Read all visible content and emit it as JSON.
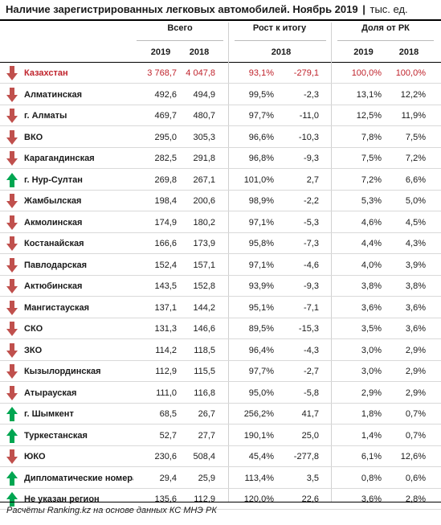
{
  "title": {
    "main": "Наличие зарегистрированных легковых автомобилей. Ноябрь 2019",
    "sep": "|",
    "unit": "тыс. ед."
  },
  "header": {
    "group_total": "Всего",
    "group_growth": "Рост к итогу",
    "group_share": "Доля от РК",
    "col_total_2019": "2019",
    "col_total_2018": "2018",
    "col_growth_2018": "2018",
    "col_share_2019": "2019",
    "col_share_2018": "2018"
  },
  "colors": {
    "down": "#c0504d",
    "up": "#00a651",
    "total_text": "#c0232c"
  },
  "rows": [
    {
      "name": "Казахстан",
      "trend": "down",
      "t2019": "3 768,7",
      "t2018": "4 047,8",
      "g_pct": "93,1%",
      "g_abs": "-279,1",
      "s2019": "100,0%",
      "s2018": "100,0%",
      "total": true
    },
    {
      "name": "Алматинская",
      "trend": "down",
      "t2019": "492,6",
      "t2018": "494,9",
      "g_pct": "99,5%",
      "g_abs": "-2,3",
      "s2019": "13,1%",
      "s2018": "12,2%"
    },
    {
      "name": "г. Алматы",
      "trend": "down",
      "t2019": "469,7",
      "t2018": "480,7",
      "g_pct": "97,7%",
      "g_abs": "-11,0",
      "s2019": "12,5%",
      "s2018": "11,9%"
    },
    {
      "name": "ВКО",
      "trend": "down",
      "t2019": "295,0",
      "t2018": "305,3",
      "g_pct": "96,6%",
      "g_abs": "-10,3",
      "s2019": "7,8%",
      "s2018": "7,5%"
    },
    {
      "name": "Карагандинская",
      "trend": "down",
      "t2019": "282,5",
      "t2018": "291,8",
      "g_pct": "96,8%",
      "g_abs": "-9,3",
      "s2019": "7,5%",
      "s2018": "7,2%"
    },
    {
      "name": "г. Нур-Султан",
      "trend": "up",
      "t2019": "269,8",
      "t2018": "267,1",
      "g_pct": "101,0%",
      "g_abs": "2,7",
      "s2019": "7,2%",
      "s2018": "6,6%"
    },
    {
      "name": "Жамбылская",
      "trend": "down",
      "t2019": "198,4",
      "t2018": "200,6",
      "g_pct": "98,9%",
      "g_abs": "-2,2",
      "s2019": "5,3%",
      "s2018": "5,0%"
    },
    {
      "name": "Акмолинская",
      "trend": "down",
      "t2019": "174,9",
      "t2018": "180,2",
      "g_pct": "97,1%",
      "g_abs": "-5,3",
      "s2019": "4,6%",
      "s2018": "4,5%"
    },
    {
      "name": "Костанайская",
      "trend": "down",
      "t2019": "166,6",
      "t2018": "173,9",
      "g_pct": "95,8%",
      "g_abs": "-7,3",
      "s2019": "4,4%",
      "s2018": "4,3%"
    },
    {
      "name": "Павлодарская",
      "trend": "down",
      "t2019": "152,4",
      "t2018": "157,1",
      "g_pct": "97,1%",
      "g_abs": "-4,6",
      "s2019": "4,0%",
      "s2018": "3,9%"
    },
    {
      "name": "Актюбинская",
      "trend": "down",
      "t2019": "143,5",
      "t2018": "152,8",
      "g_pct": "93,9%",
      "g_abs": "-9,3",
      "s2019": "3,8%",
      "s2018": "3,8%"
    },
    {
      "name": "Мангистауская",
      "trend": "down",
      "t2019": "137,1",
      "t2018": "144,2",
      "g_pct": "95,1%",
      "g_abs": "-7,1",
      "s2019": "3,6%",
      "s2018": "3,6%"
    },
    {
      "name": "СКО",
      "trend": "down",
      "t2019": "131,3",
      "t2018": "146,6",
      "g_pct": "89,5%",
      "g_abs": "-15,3",
      "s2019": "3,5%",
      "s2018": "3,6%"
    },
    {
      "name": "ЗКО",
      "trend": "down",
      "t2019": "114,2",
      "t2018": "118,5",
      "g_pct": "96,4%",
      "g_abs": "-4,3",
      "s2019": "3,0%",
      "s2018": "2,9%"
    },
    {
      "name": "Кызылординская",
      "trend": "down",
      "t2019": "112,9",
      "t2018": "115,5",
      "g_pct": "97,7%",
      "g_abs": "-2,7",
      "s2019": "3,0%",
      "s2018": "2,9%"
    },
    {
      "name": "Атырауская",
      "trend": "down",
      "t2019": "111,0",
      "t2018": "116,8",
      "g_pct": "95,0%",
      "g_abs": "-5,8",
      "s2019": "2,9%",
      "s2018": "2,9%"
    },
    {
      "name": "г. Шымкент",
      "trend": "up",
      "t2019": "68,5",
      "t2018": "26,7",
      "g_pct": "256,2%",
      "g_abs": "41,7",
      "s2019": "1,8%",
      "s2018": "0,7%"
    },
    {
      "name": "Туркестанская",
      "trend": "up",
      "t2019": "52,7",
      "t2018": "27,7",
      "g_pct": "190,1%",
      "g_abs": "25,0",
      "s2019": "1,4%",
      "s2018": "0,7%"
    },
    {
      "name": "ЮКО",
      "trend": "down",
      "t2019": "230,6",
      "t2018": "508,4",
      "g_pct": "45,4%",
      "g_abs": "-277,8",
      "s2019": "6,1%",
      "s2018": "12,6%"
    },
    {
      "name": "Дипломатические номера",
      "trend": "up",
      "t2019": "29,4",
      "t2018": "25,9",
      "g_pct": "113,4%",
      "g_abs": "3,5",
      "s2019": "0,8%",
      "s2018": "0,6%"
    },
    {
      "name": "Не указан регион",
      "trend": "up",
      "t2019": "135,6",
      "t2018": "112,9",
      "g_pct": "120,0%",
      "g_abs": "22,6",
      "s2019": "3,6%",
      "s2018": "2,8%"
    }
  ],
  "footer": "Расчёты Ranking.kz на основе данных КС МНЭ РК"
}
